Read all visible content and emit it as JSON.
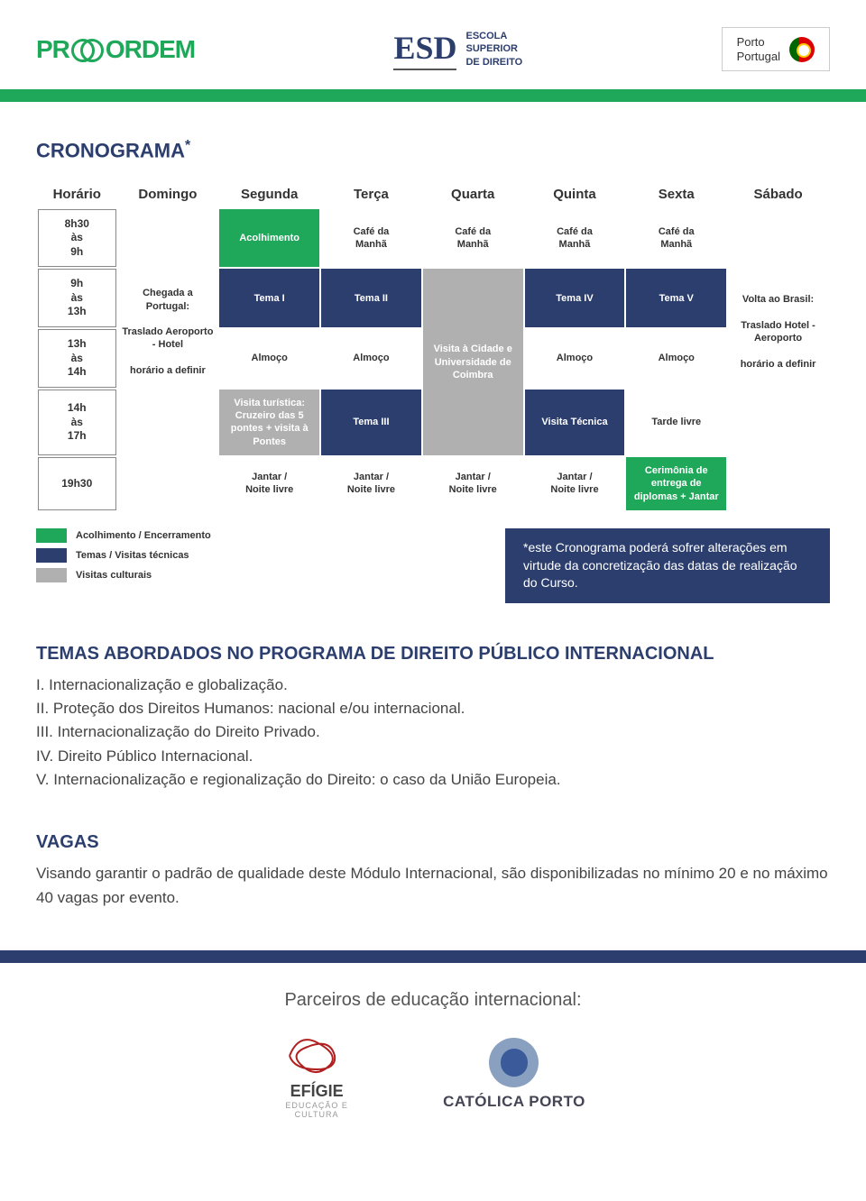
{
  "header": {
    "logo1_a": "PR",
    "logo1_b": "ORDEM",
    "logo2_big": "ESD",
    "logo2_l1": "ESCOLA",
    "logo2_l2": "SUPERIOR",
    "logo2_l3": "DE DIREITO",
    "badge_l1": "Porto",
    "badge_l2": "Portugal"
  },
  "crono_title": "CRONOGRAMA",
  "crono_ast": "*",
  "days": [
    "Horário",
    "Domingo",
    "Segunda",
    "Terça",
    "Quarta",
    "Quinta",
    "Sexta",
    "Sábado"
  ],
  "times": {
    "r1": "8h30\nàs\n9h",
    "r2": "9h\nàs\n13h",
    "r3": "13h\nàs\n14h",
    "r4": "14h\nàs\n17h",
    "r5": "19h30"
  },
  "cells": {
    "dom": "Chegada a Portugal:\n\nTraslado Aeroporto - Hotel\n\nhorário a definir",
    "sab": "Volta ao Brasil:\n\nTraslado Hotel - Aeroporto\n\nhorário a definir",
    "acolh": "Acolhimento",
    "cafe": "Café da\nManhã",
    "tema1": "Tema I",
    "tema2": "Tema II",
    "tema3": "Tema III",
    "tema4": "Tema IV",
    "tema5": "Tema V",
    "almoco": "Almoço",
    "coimbra": "Visita à Cidade e Universidade de Coimbra",
    "visita_tur": "Visita turística: Cruzeiro das 5 pontes + visita à Pontes",
    "visita_tec": "Visita Técnica",
    "tarde_livre": "Tarde livre",
    "jantar": "Jantar /\nNoite livre",
    "cerimonia": "Cerimônia de entrega de diplomas + Jantar"
  },
  "legend": {
    "l1": "Acolhimento / Encerramento",
    "l2": "Temas / Visitas técnicas",
    "l3": "Visitas culturais"
  },
  "note": "*este Cronograma poderá sofrer alterações em virtude da concretização das datas de realização do Curso.",
  "temas_title": "TEMAS ABORDADOS NO PROGRAMA DE DIREITO PÚBLICO INTERNACIONAL",
  "temas": [
    "I. Internacionalização e globalização.",
    "II. Proteção dos Direitos Humanos: nacional e/ou internacional.",
    "III. Internacionalização do Direito Privado.",
    "IV. Direito Público Internacional.",
    "V. Internacionalização e regionalização do Direito: o caso da União Europeia."
  ],
  "vagas_title": "VAGAS",
  "vagas_text": "Visando garantir o padrão de qualidade deste Módulo Internacional, são disponibilizadas no mínimo 20 e no máximo 40 vagas por evento.",
  "partners_title": "Parceiros de educação internacional:",
  "partner1_name": "EFÍGIE",
  "partner1_sub": "EDUCAÇÃO E\nCULTURA",
  "partner2_name": "CATÓLICA PORTO",
  "colors": {
    "green": "#1fa85a",
    "navy": "#2c3e6e",
    "grey": "#b0b0b0"
  }
}
